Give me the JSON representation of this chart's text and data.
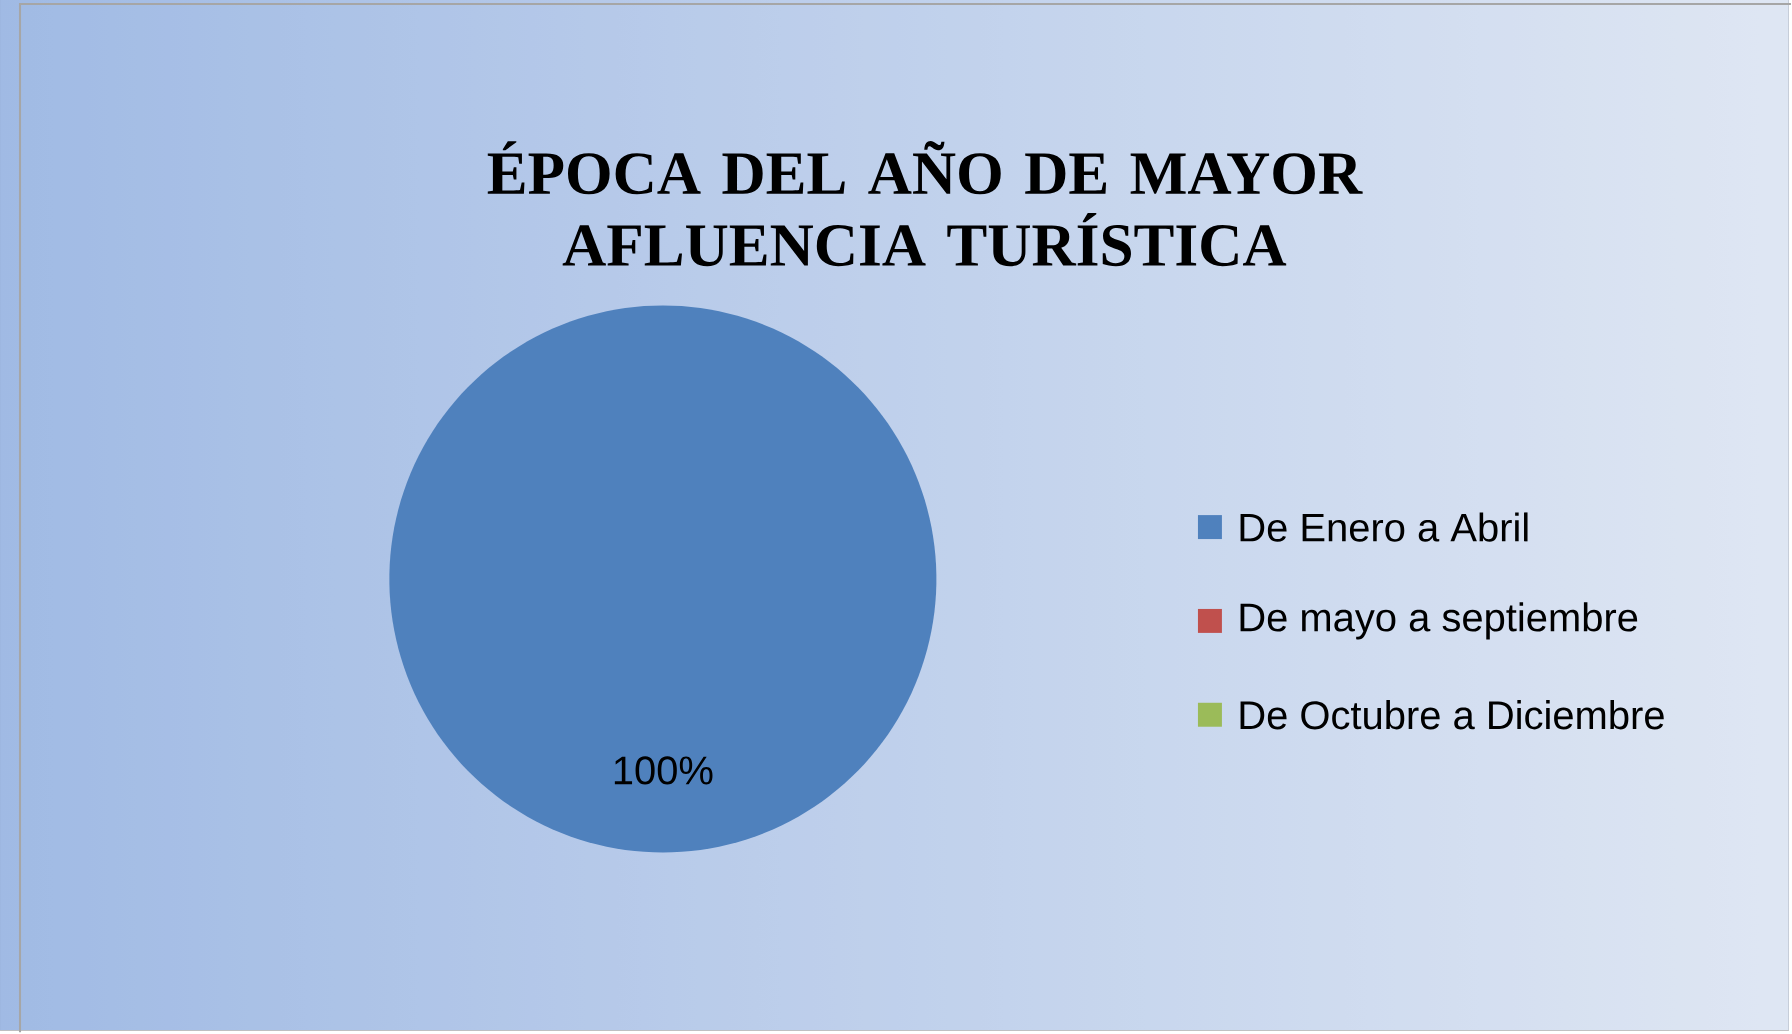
{
  "chart_data": {
    "type": "pie",
    "title": "ÉPOCA  DEL AÑO DE MAYOR  AFLUENCIA TURÍSTICA",
    "categories": [
      "De Enero a Abril",
      "De mayo a septiembre",
      "De Octubre a Diciembre"
    ],
    "values": [
      100,
      0,
      0
    ],
    "colors": [
      "#4f81bd",
      "#c0504d",
      "#9bbb59"
    ],
    "value_labels": [
      "100%",
      null,
      null
    ],
    "legend": "right"
  }
}
